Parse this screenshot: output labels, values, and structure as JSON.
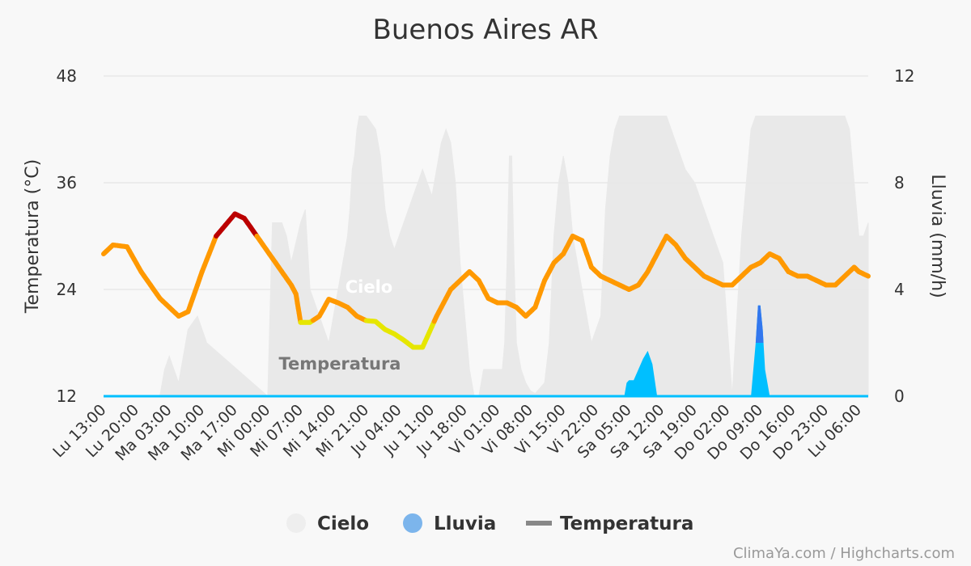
{
  "chart_data": {
    "type": "line",
    "title": "Buenos Aires AR",
    "credit": "ClimaYa.com / Highcharts.com",
    "y_left": {
      "title": "Temperatura (°C)",
      "ticks": [
        12,
        24,
        36,
        48
      ],
      "range": [
        12,
        48
      ]
    },
    "y_right": {
      "title": "Lluvia (mm/h)",
      "ticks": [
        0,
        4,
        8,
        12
      ],
      "range": [
        0,
        12
      ]
    },
    "x_labels": [
      "Lu 13:00",
      "Lu 20:00",
      "Ma 03:00",
      "Ma 10:00",
      "Ma 17:00",
      "Mi 00:00",
      "Mi 07:00",
      "Mi 14:00",
      "Mi 21:00",
      "Ju 04:00",
      "Ju 11:00",
      "Ju 18:00",
      "Vi 01:00",
      "Vi 08:00",
      "Vi 15:00",
      "Vi 22:00",
      "Sa 05:00",
      "Sa 12:00",
      "Sa 19:00",
      "Do 02:00",
      "Do 09:00",
      "Do 16:00",
      "Do 23:00",
      "Lu 06:00"
    ],
    "x_range_hours": [
      0,
      163
    ],
    "legend": [
      "Cielo",
      "Lluvia",
      "Temperatura"
    ],
    "series_labels": {
      "cielo": "Cielo",
      "temperatura": "Temperatura"
    },
    "colors": {
      "cielo": "#e6e6e6",
      "cielo_legend": "#eeeeee",
      "lluvia": "#00bfff",
      "lluvia_heavy": "#3377ee",
      "lluvia_legend": "#7cb5ec",
      "temp_mild": "#ff9900",
      "temp_cool": "#e6e600",
      "temp_hot": "#bb0000",
      "temp_legend": "#888888"
    },
    "temperatura": {
      "hours": [
        0,
        2,
        5,
        8,
        12,
        16,
        18,
        21,
        24,
        28,
        30,
        34,
        38,
        40,
        41,
        42,
        44,
        46,
        48,
        50,
        52,
        54,
        56,
        58,
        60,
        62,
        64,
        66,
        68,
        71,
        74,
        76,
        78,
        80,
        82,
        84,
        86,
        88,
        90,
        92,
        94,
        96,
        98,
        100,
        102,
        104,
        106,
        108,
        110,
        112,
        114,
        116,
        118,
        120,
        122,
        124,
        126,
        128,
        130,
        132,
        134,
        136,
        138,
        140,
        142,
        144,
        146,
        148,
        150,
        152,
        154,
        156,
        158,
        160,
        161,
        163
      ],
      "values": [
        28,
        29,
        28.8,
        26,
        23,
        21,
        21.5,
        26,
        30,
        32.5,
        32,
        29,
        26,
        24.5,
        23.5,
        20.3,
        20.3,
        21,
        22.9,
        22.5,
        22,
        21,
        20.5,
        20.4,
        19.5,
        19,
        18.3,
        17.5,
        17.5,
        21,
        24,
        25,
        26,
        25,
        23,
        22.5,
        22.5,
        22,
        21,
        22,
        25,
        27,
        28,
        30,
        29.5,
        26.5,
        25.5,
        25,
        24.5,
        24,
        24.5,
        26,
        28,
        30,
        29,
        27.5,
        26.5,
        25.5,
        25,
        24.5,
        24.5,
        25.5,
        26.5,
        27,
        28,
        27.5,
        26,
        25.5,
        25.5,
        25,
        24.5,
        24.5,
        25.5,
        26.5,
        26,
        25.5
      ]
    },
    "cielo": {
      "hours": [
        0,
        12,
        13,
        14,
        15,
        16,
        18,
        20,
        22,
        35,
        36,
        38,
        39,
        40,
        42,
        43,
        44,
        48,
        52,
        52.5,
        53,
        53.5,
        54,
        54.5,
        55,
        55.5,
        56,
        58,
        59,
        60,
        61,
        62,
        64,
        65,
        66,
        67,
        68,
        70,
        71,
        72,
        73,
        74,
        75,
        76,
        77,
        78,
        79,
        80,
        81,
        84,
        85,
        85.5,
        86,
        86.5,
        87,
        87.5,
        88,
        89,
        90,
        91,
        92,
        94,
        95,
        96,
        97,
        98,
        99,
        100,
        102,
        104,
        106,
        107,
        108,
        109,
        110,
        111,
        112,
        113,
        114,
        115,
        116,
        118,
        120,
        122,
        124,
        126,
        128,
        130,
        132,
        134,
        135,
        136,
        137,
        138,
        139,
        140,
        142,
        144,
        146,
        148,
        150,
        152,
        154,
        156,
        158,
        159,
        160,
        161,
        162,
        163
      ],
      "values": [
        0,
        0,
        1,
        1.5,
        1,
        0.5,
        2.5,
        3,
        2,
        0,
        6.5,
        6.5,
        6,
        5,
        6.5,
        7,
        4,
        2,
        6,
        7,
        8.5,
        9,
        10,
        10.5,
        10.5,
        10.5,
        10.5,
        10,
        9,
        7,
        6,
        5.5,
        6.5,
        7,
        7.5,
        8,
        8.5,
        7.5,
        8.5,
        9.5,
        10,
        9.5,
        8,
        5,
        3,
        1,
        0,
        0,
        1,
        1,
        1,
        2,
        5,
        9,
        9,
        5,
        2,
        1,
        0.5,
        0.2,
        0.1,
        0.5,
        2,
        6,
        8,
        9,
        8,
        6,
        4,
        2,
        3,
        7,
        9,
        10,
        10.5,
        10.5,
        10.5,
        10.5,
        10.5,
        10.5,
        10.5,
        10.5,
        10.5,
        9.5,
        8.5,
        8,
        7,
        6,
        5,
        0,
        3,
        6,
        8,
        10,
        10.5,
        10.5,
        10.5,
        10.5,
        10.5,
        10.5,
        10.5,
        10.5,
        10.5,
        10.5,
        10.5,
        10,
        8,
        6,
        6,
        6.5
      ]
    },
    "lluvia": {
      "hours": [
        0,
        111,
        111.5,
        112,
        113,
        114,
        115,
        116,
        117,
        118,
        130,
        138,
        139,
        139.5,
        140,
        140.5,
        141,
        142,
        163
      ],
      "values": [
        0,
        0,
        0.5,
        0.6,
        0.6,
        1,
        1.4,
        1.7,
        1.2,
        0,
        0,
        0,
        2,
        3.4,
        3.4,
        2.5,
        1,
        0,
        0
      ]
    }
  }
}
